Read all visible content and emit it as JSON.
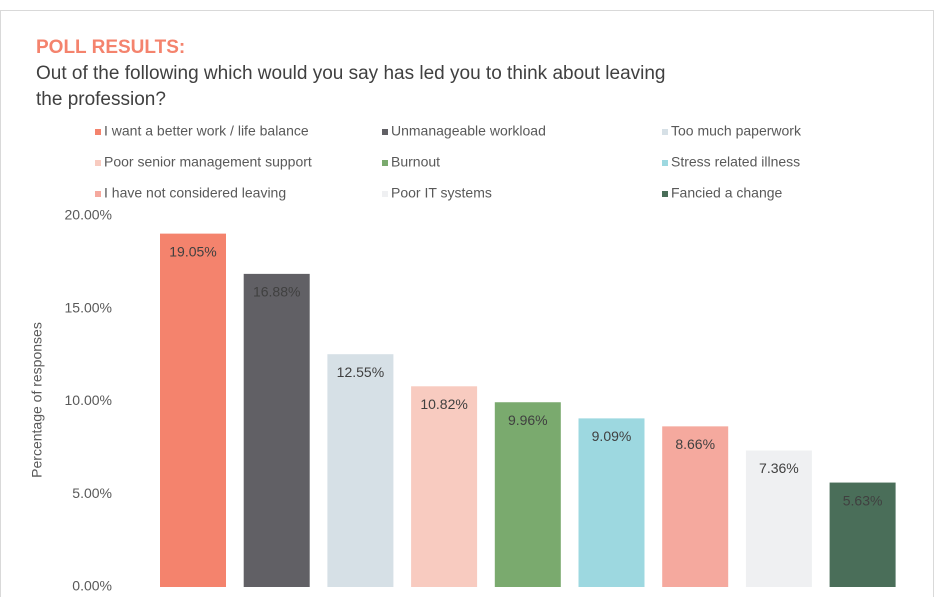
{
  "chart_data": {
    "type": "bar",
    "title": "POLL RESULTS:",
    "subtitle": [
      "Out of the following which would you say has led you to think about leaving",
      "the profession?"
    ],
    "y_label": "Percentage of responses",
    "categories": [
      "I want a better work / life balance",
      "Unmanageable workload",
      "Too much paperwork",
      "Poor senior management support",
      "Burnout",
      "Stress related illness",
      "I have not considered leaving",
      "Poor IT systems",
      "Fancied a change"
    ],
    "values": [
      19.05,
      16.88,
      12.55,
      10.82,
      9.96,
      9.09,
      8.66,
      7.36,
      5.63
    ],
    "value_labels": [
      "19.05%",
      "16.88%",
      "12.55%",
      "10.82%",
      "9.96%",
      "9.09%",
      "8.66%",
      "7.36%",
      "5.63%"
    ],
    "colors": [
      "#f4836d",
      "#616065",
      "#d6e0e6",
      "#f8cbc0",
      "#7aaa6e",
      "#9dd8e0",
      "#f5a99e",
      "#eff0f2",
      "#4a6e59"
    ],
    "ylim": [
      0,
      20
    ],
    "yticks": [
      {
        "value": 0,
        "label": "0.00%"
      },
      {
        "value": 5,
        "label": "5.00%"
      },
      {
        "value": 10,
        "label": "10.00%"
      },
      {
        "value": 15,
        "label": "15.00%"
      },
      {
        "value": 20,
        "label": "20.00%"
      }
    ],
    "legend": "top"
  }
}
